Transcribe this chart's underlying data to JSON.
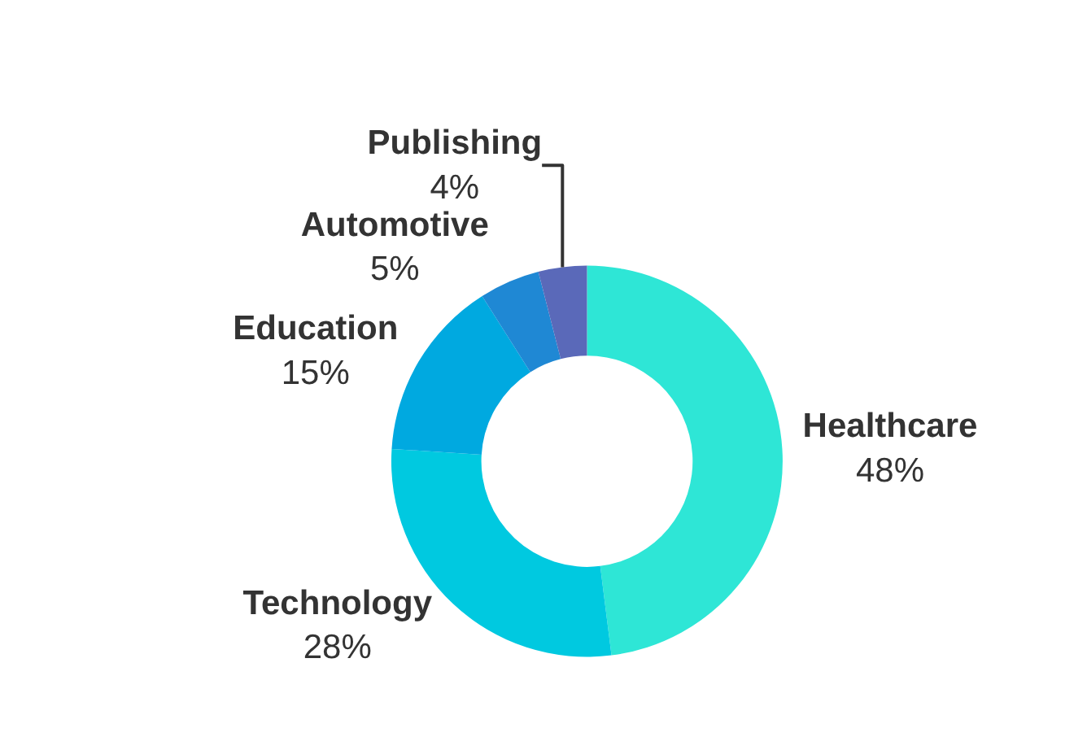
{
  "chart_data": {
    "type": "donut",
    "categories": [
      "Healthcare",
      "Technology",
      "Education",
      "Automotive",
      "Publishing"
    ],
    "values": [
      48,
      28,
      15,
      5,
      4
    ],
    "value_labels": [
      "48%",
      "28%",
      "15%",
      "5%",
      "4%"
    ],
    "colors": [
      "#2ee6d6",
      "#00c9e0",
      "#00a9e0",
      "#1f88d4",
      "#5a69b9"
    ],
    "legend": false
  }
}
